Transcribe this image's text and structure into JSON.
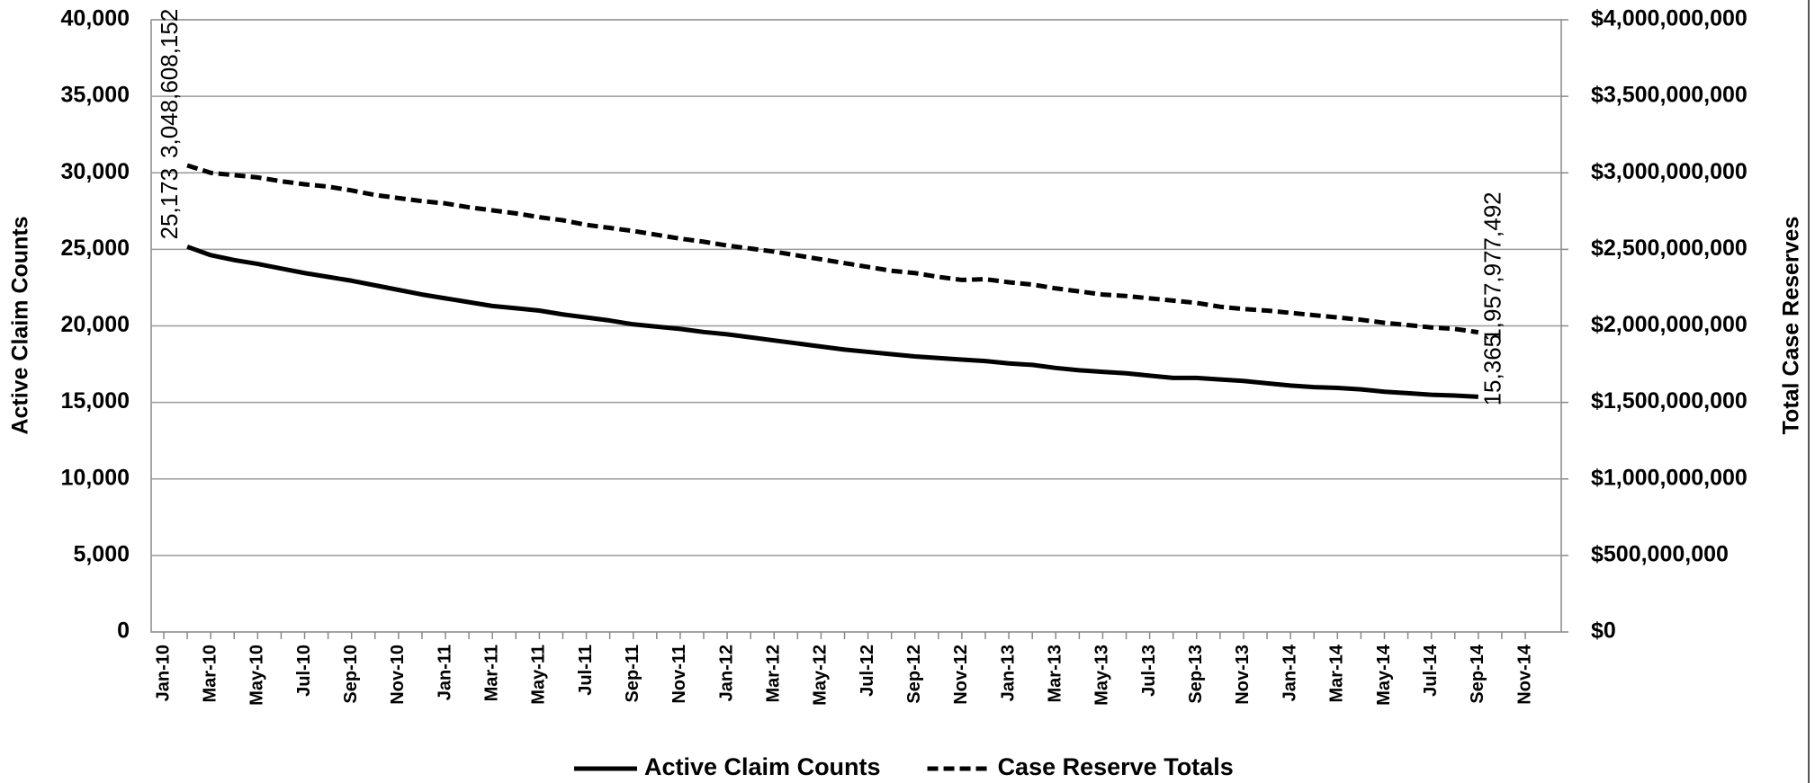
{
  "chart_data": {
    "type": "line",
    "categories": [
      "Jan-10",
      null,
      "Mar-10",
      null,
      "May-10",
      null,
      "Jul-10",
      null,
      "Sep-10",
      null,
      "Nov-10",
      null,
      "Jan-11",
      null,
      "Mar-11",
      null,
      "May-11",
      null,
      "Jul-11",
      null,
      "Sep-11",
      null,
      "Nov-11",
      null,
      "Jan-12",
      null,
      "Mar-12",
      null,
      "May-12",
      null,
      "Jul-12",
      null,
      "Sep-12",
      null,
      "Nov-12",
      null,
      "Jan-13",
      null,
      "Mar-13",
      null,
      "May-13",
      null,
      "Jul-13",
      null,
      "Sep-13",
      null,
      "Nov-13",
      null,
      "Jan-14",
      null,
      "Mar-14",
      null,
      "May-14",
      null,
      "Jul-14",
      null,
      "Sep-14",
      null,
      "Nov-14"
    ],
    "series": [
      {
        "name": "Active Claim Counts",
        "color": "#000000",
        "dash": false,
        "values": [
          null,
          25173,
          24620,
          24300,
          24050,
          23750,
          23450,
          23200,
          22950,
          22650,
          22350,
          22050,
          21800,
          21550,
          21300,
          21150,
          21000,
          20750,
          20550,
          20350,
          20100,
          19950,
          19800,
          19600,
          19450,
          19250,
          19050,
          18850,
          18650,
          18450,
          18300,
          18150,
          18000,
          17900,
          17800,
          17700,
          17550,
          17450,
          17250,
          17100,
          17000,
          16900,
          16750,
          16600,
          16600,
          16500,
          16400,
          16250,
          16100,
          16000,
          15950,
          15850,
          15700,
          15600,
          15500,
          15450,
          15365,
          null,
          null
        ],
        "value_labels": [
          null,
          "25,173",
          null,
          null,
          null,
          null,
          null,
          null,
          null,
          null,
          null,
          null,
          null,
          null,
          null,
          null,
          null,
          null,
          null,
          null,
          null,
          null,
          null,
          null,
          null,
          null,
          null,
          null,
          null,
          null,
          null,
          null,
          null,
          null,
          null,
          null,
          null,
          null,
          null,
          null,
          null,
          null,
          null,
          null,
          null,
          null,
          null,
          null,
          null,
          null,
          null,
          null,
          null,
          null,
          null,
          null,
          "15,365",
          null,
          null
        ]
      },
      {
        "name": "Case Reserve Totals",
        "color": "#000000",
        "dash": true,
        "axis": "y2",
        "values": [
          null,
          3048608152,
          3000000000,
          2985000000,
          2970000000,
          2945000000,
          2925000000,
          2910000000,
          2885000000,
          2855000000,
          2835000000,
          2815000000,
          2800000000,
          2775000000,
          2755000000,
          2735000000,
          2710000000,
          2690000000,
          2660000000,
          2640000000,
          2620000000,
          2595000000,
          2570000000,
          2550000000,
          2525000000,
          2505000000,
          2485000000,
          2460000000,
          2435000000,
          2410000000,
          2385000000,
          2360000000,
          2345000000,
          2320000000,
          2300000000,
          2305000000,
          2285000000,
          2270000000,
          2245000000,
          2225000000,
          2205000000,
          2195000000,
          2180000000,
          2165000000,
          2150000000,
          2125000000,
          2110000000,
          2100000000,
          2085000000,
          2070000000,
          2055000000,
          2040000000,
          2020000000,
          2005000000,
          1990000000,
          1980000000,
          1957977492,
          null,
          null
        ],
        "value_labels": [
          null,
          "3,048,608,152",
          null,
          null,
          null,
          null,
          null,
          null,
          null,
          null,
          null,
          null,
          null,
          null,
          null,
          null,
          null,
          null,
          null,
          null,
          null,
          null,
          null,
          null,
          null,
          null,
          null,
          null,
          null,
          null,
          null,
          null,
          null,
          null,
          null,
          null,
          null,
          null,
          null,
          null,
          null,
          null,
          null,
          null,
          null,
          null,
          null,
          null,
          null,
          null,
          null,
          null,
          null,
          null,
          null,
          null,
          "1,957,977,492",
          null,
          null
        ]
      }
    ],
    "y_label": "Active Claim Counts",
    "y2_label": "Total Case Reserves",
    "ylim": [
      0,
      40000
    ],
    "yticks": [
      0,
      {
        "value": 5000,
        "label": "5,000"
      },
      {
        "value": 10000,
        "label": "10,000"
      },
      {
        "value": 15000,
        "label": "15,000"
      },
      {
        "value": 20000,
        "label": "20,000"
      },
      {
        "value": 25000,
        "label": "25,000"
      },
      {
        "value": 30000,
        "label": "30,000"
      },
      {
        "value": 35000,
        "label": "35,000"
      },
      {
        "value": 40000,
        "label": "40,000"
      }
    ],
    "y2lim": [
      0,
      4000000000
    ],
    "y2ticks": [
      {
        "value": 0,
        "label": "$0"
      },
      {
        "value": 500000000,
        "label": "$500,000,000"
      },
      {
        "value": 1000000000,
        "label": "$1,000,000,000"
      },
      {
        "value": 1500000000,
        "label": "$1,500,000,000"
      },
      {
        "value": 2000000000,
        "label": "$2,000,000,000"
      },
      {
        "value": 2500000000,
        "label": "$2,500,000,000"
      },
      {
        "value": 3000000000,
        "label": "$3,000,000,000"
      },
      {
        "value": 3500000000,
        "label": "$3,500,000,000"
      },
      {
        "value": 4000000000,
        "label": "$4,000,000,000"
      }
    ],
    "grid": true,
    "legend": "bottom"
  }
}
